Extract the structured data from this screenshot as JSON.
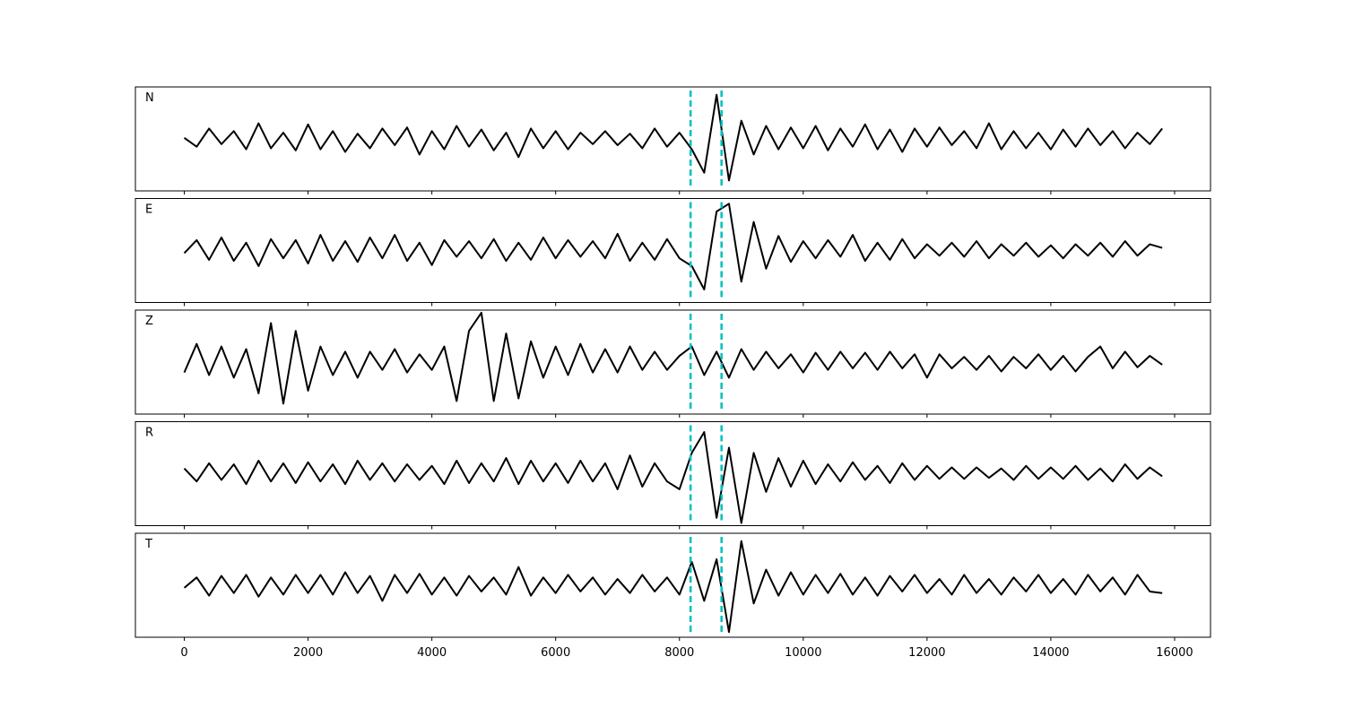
{
  "chart_data": {
    "type": "line",
    "x": [
      0,
      200,
      400,
      600,
      800,
      1000,
      1200,
      1400,
      1600,
      1800,
      2000,
      2200,
      2400,
      2600,
      2800,
      3000,
      3200,
      3400,
      3600,
      3800,
      4000,
      4200,
      4400,
      4600,
      4800,
      5000,
      5200,
      5400,
      5600,
      5800,
      6000,
      6200,
      6400,
      6600,
      6800,
      7000,
      7200,
      7400,
      7600,
      7800,
      8000,
      8200,
      8400,
      8600,
      8800,
      9000,
      9200,
      9400,
      9600,
      9800,
      10000,
      10200,
      10400,
      10600,
      10800,
      11000,
      11200,
      11400,
      11600,
      11800,
      12000,
      12200,
      12400,
      12600,
      12800,
      13000,
      13200,
      13400,
      13600,
      13800,
      14000,
      14200,
      14400,
      14600,
      14800,
      15000,
      15200,
      15400,
      15600,
      15800
    ],
    "series": [
      {
        "name": "N",
        "color": "#000000",
        "values": [
          0.02,
          -0.15,
          0.2,
          -0.1,
          0.15,
          -0.2,
          0.3,
          -0.18,
          0.12,
          -0.22,
          0.28,
          -0.2,
          0.15,
          -0.25,
          0.1,
          -0.18,
          0.2,
          -0.12,
          0.22,
          -0.3,
          0.15,
          -0.2,
          0.25,
          -0.15,
          0.18,
          -0.22,
          0.12,
          -0.35,
          0.2,
          -0.18,
          0.15,
          -0.2,
          0.12,
          -0.1,
          0.15,
          -0.12,
          0.1,
          -0.18,
          0.2,
          -0.15,
          0.12,
          -0.2,
          -0.65,
          0.85,
          -0.8,
          0.35,
          -0.3,
          0.25,
          -0.2,
          0.22,
          -0.18,
          0.25,
          -0.22,
          0.2,
          -0.15,
          0.28,
          -0.2,
          0.18,
          -0.25,
          0.2,
          -0.15,
          0.22,
          -0.12,
          0.15,
          -0.18,
          0.3,
          -0.2,
          0.15,
          -0.18,
          0.12,
          -0.2,
          0.18,
          -0.15,
          0.2,
          -0.12,
          0.15,
          -0.18,
          0.12,
          -0.1,
          0.2
        ]
      },
      {
        "name": "E",
        "color": "#000000",
        "values": [
          -0.05,
          0.2,
          -0.18,
          0.25,
          -0.2,
          0.15,
          -0.3,
          0.22,
          -0.15,
          0.2,
          -0.25,
          0.3,
          -0.2,
          0.18,
          -0.22,
          0.25,
          -0.15,
          0.3,
          -0.2,
          0.15,
          -0.28,
          0.2,
          -0.12,
          0.18,
          -0.15,
          0.22,
          -0.2,
          0.15,
          -0.18,
          0.25,
          -0.15,
          0.2,
          -0.12,
          0.18,
          -0.15,
          0.32,
          -0.2,
          0.15,
          -0.18,
          0.22,
          -0.15,
          -0.3,
          -0.75,
          0.75,
          0.9,
          -0.6,
          0.55,
          -0.35,
          0.28,
          -0.22,
          0.18,
          -0.15,
          0.2,
          -0.12,
          0.3,
          -0.2,
          0.15,
          -0.18,
          0.22,
          -0.15,
          0.12,
          -0.1,
          0.15,
          -0.12,
          0.18,
          -0.15,
          0.12,
          -0.1,
          0.15,
          -0.12,
          0.1,
          -0.15,
          0.12,
          -0.1,
          0.15,
          -0.12,
          0.18,
          -0.1,
          0.12,
          0.05
        ]
      },
      {
        "name": "Z",
        "color": "#000000",
        "values": [
          -0.2,
          0.35,
          -0.25,
          0.3,
          -0.3,
          0.25,
          -0.6,
          0.75,
          -0.8,
          0.6,
          -0.55,
          0.3,
          -0.25,
          0.2,
          -0.3,
          0.2,
          -0.15,
          0.25,
          -0.2,
          0.15,
          -0.15,
          0.3,
          -0.75,
          0.6,
          0.95,
          -0.75,
          0.55,
          -0.7,
          0.4,
          -0.3,
          0.3,
          -0.25,
          0.35,
          -0.2,
          0.25,
          -0.2,
          0.3,
          -0.15,
          0.2,
          -0.15,
          0.12,
          0.3,
          -0.25,
          0.2,
          -0.3,
          0.25,
          -0.15,
          0.2,
          -0.12,
          0.15,
          -0.2,
          0.18,
          -0.15,
          0.2,
          -0.12,
          0.18,
          -0.15,
          0.2,
          -0.12,
          0.15,
          -0.3,
          0.15,
          -0.12,
          0.1,
          -0.15,
          0.12,
          -0.18,
          0.1,
          -0.12,
          0.15,
          -0.15,
          0.12,
          -0.18,
          0.1,
          0.3,
          -0.12,
          0.2,
          -0.1,
          0.12,
          -0.05
        ]
      },
      {
        "name": "R",
        "color": "#000000",
        "values": [
          0.1,
          -0.15,
          0.2,
          -0.12,
          0.18,
          -0.2,
          0.25,
          -0.15,
          0.2,
          -0.18,
          0.22,
          -0.15,
          0.18,
          -0.2,
          0.25,
          -0.12,
          0.2,
          -0.15,
          0.18,
          -0.12,
          0.15,
          -0.2,
          0.25,
          -0.18,
          0.2,
          -0.15,
          0.3,
          -0.2,
          0.25,
          -0.15,
          0.2,
          -0.18,
          0.25,
          -0.15,
          0.2,
          -0.3,
          0.35,
          -0.25,
          0.2,
          -0.15,
          -0.3,
          0.4,
          0.8,
          -0.85,
          0.5,
          -0.95,
          0.4,
          -0.35,
          0.3,
          -0.25,
          0.25,
          -0.2,
          0.18,
          -0.15,
          0.22,
          -0.12,
          0.15,
          -0.18,
          0.2,
          -0.12,
          0.15,
          -0.1,
          0.12,
          -0.1,
          0.12,
          -0.08,
          0.1,
          -0.12,
          0.15,
          -0.1,
          0.12,
          -0.1,
          0.15,
          -0.12,
          0.1,
          -0.15,
          0.18,
          -0.1,
          0.12,
          -0.05
        ]
      },
      {
        "name": "T",
        "color": "#000000",
        "values": [
          -0.05,
          0.15,
          -0.2,
          0.18,
          -0.15,
          0.2,
          -0.22,
          0.15,
          -0.18,
          0.2,
          -0.15,
          0.2,
          -0.18,
          0.25,
          -0.15,
          0.18,
          -0.3,
          0.2,
          -0.15,
          0.22,
          -0.18,
          0.15,
          -0.2,
          0.18,
          -0.12,
          0.15,
          -0.18,
          0.35,
          -0.2,
          0.15,
          -0.15,
          0.2,
          -0.12,
          0.15,
          -0.18,
          0.12,
          -0.15,
          0.2,
          -0.12,
          0.15,
          -0.18,
          0.45,
          -0.3,
          0.5,
          -0.9,
          0.85,
          -0.35,
          0.3,
          -0.2,
          0.25,
          -0.18,
          0.2,
          -0.15,
          0.22,
          -0.18,
          0.15,
          -0.2,
          0.18,
          -0.12,
          0.2,
          -0.15,
          0.12,
          -0.18,
          0.2,
          -0.15,
          0.12,
          -0.18,
          0.15,
          -0.12,
          0.2,
          -0.15,
          0.12,
          -0.18,
          0.2,
          -0.12,
          0.15,
          -0.18,
          0.2,
          -0.12,
          -0.15
        ]
      }
    ],
    "xlim": [
      -790,
      16580
    ],
    "xticks": [
      0,
      2000,
      4000,
      6000,
      8000,
      10000,
      12000,
      14000,
      16000
    ],
    "ylim": [
      -1,
      1
    ],
    "vlines": [
      8180,
      8680
    ],
    "vline_color": "#00bfbf"
  }
}
